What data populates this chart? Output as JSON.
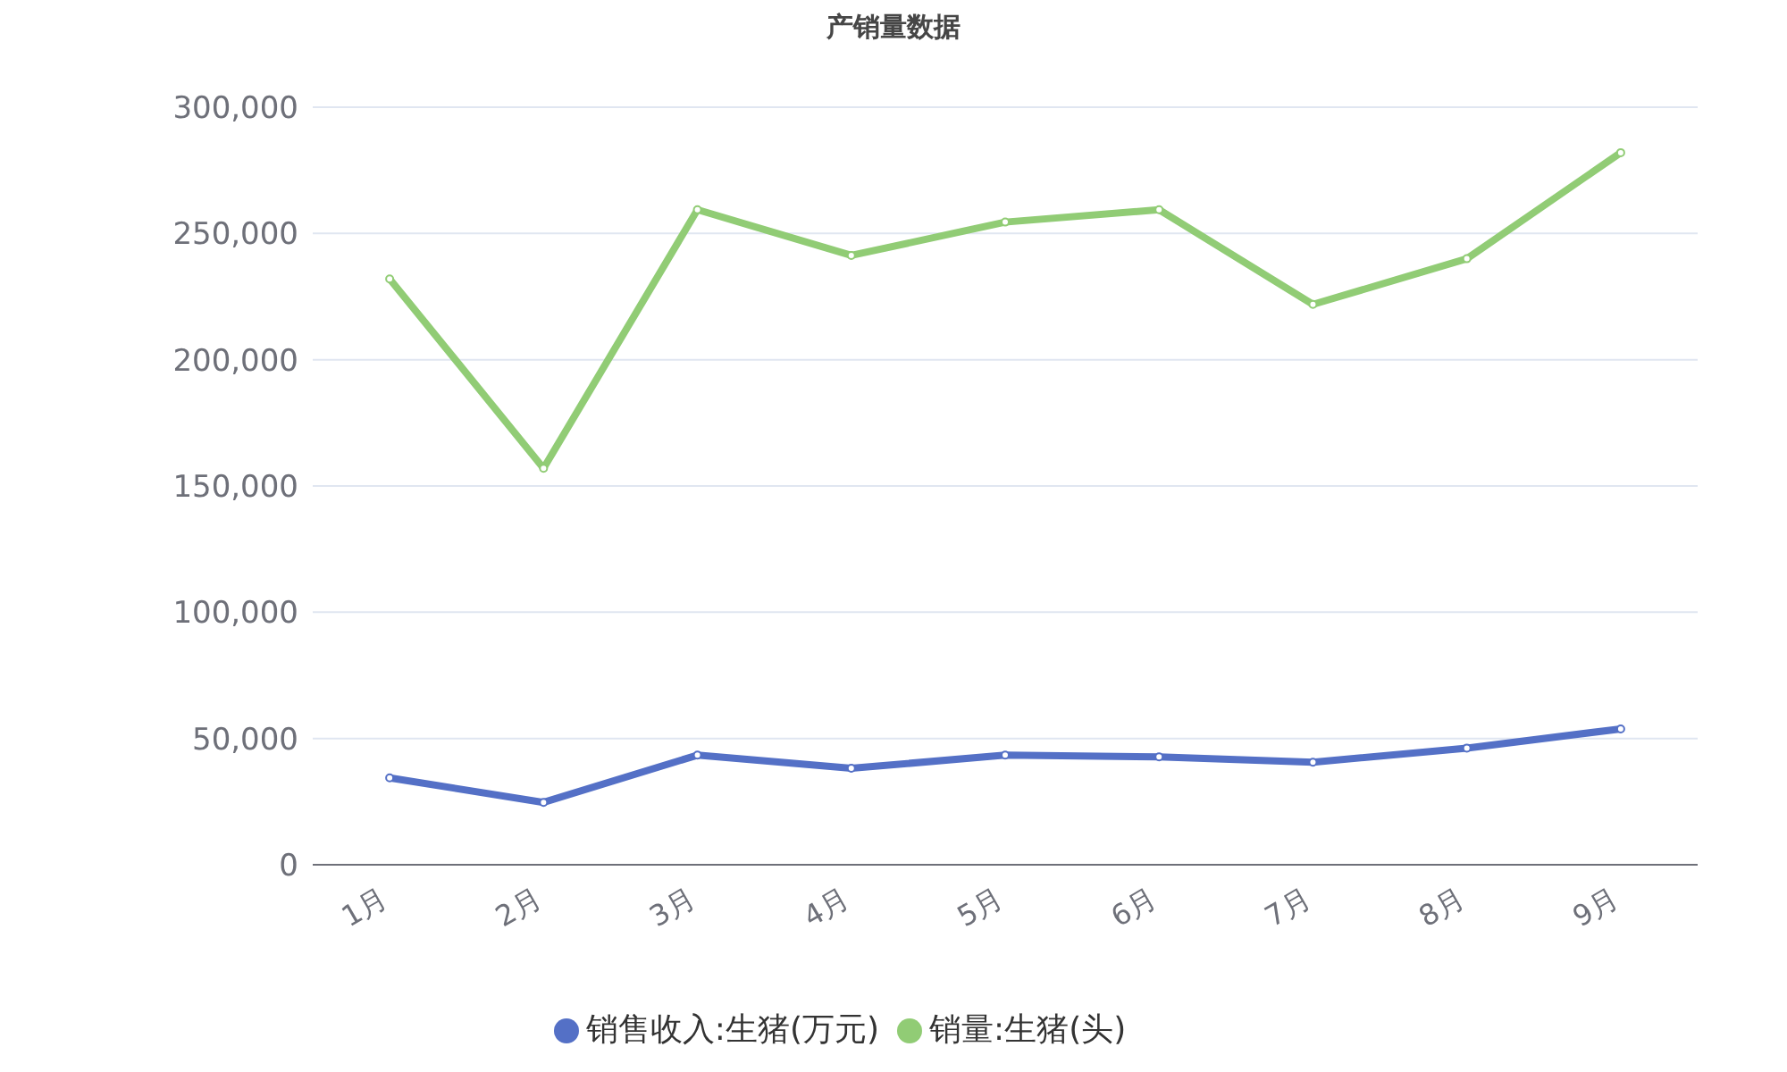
{
  "chart_data": {
    "type": "line",
    "title": "产销量数据",
    "categories": [
      "1月",
      "2月",
      "3月",
      "4月",
      "5月",
      "6月",
      "7月",
      "8月",
      "9月"
    ],
    "series": [
      {
        "name": "销售收入:生猪(万元)",
        "color": "#5470c6",
        "values": [
          34400,
          24700,
          43400,
          38200,
          43400,
          42700,
          40600,
          46200,
          53800
        ]
      },
      {
        "name": "销量:生猪(头)",
        "color": "#91cc75",
        "values": [
          232000,
          157000,
          259400,
          241300,
          254500,
          259400,
          221900,
          240000,
          282000
        ]
      }
    ],
    "ylim": [
      0,
      300000
    ],
    "yticks": [
      0,
      {
        "value": 50000,
        "label": "50,000"
      },
      {
        "value": 100000,
        "label": "100,000"
      },
      {
        "value": 150000,
        "label": "150,000"
      },
      {
        "value": 200000,
        "label": "200,000"
      },
      {
        "value": 250000,
        "label": "250,000"
      },
      {
        "value": 300000,
        "label": "300,000"
      }
    ],
    "grid": "y",
    "legend": "bottom",
    "marker": "circle",
    "line_style": "solid"
  }
}
